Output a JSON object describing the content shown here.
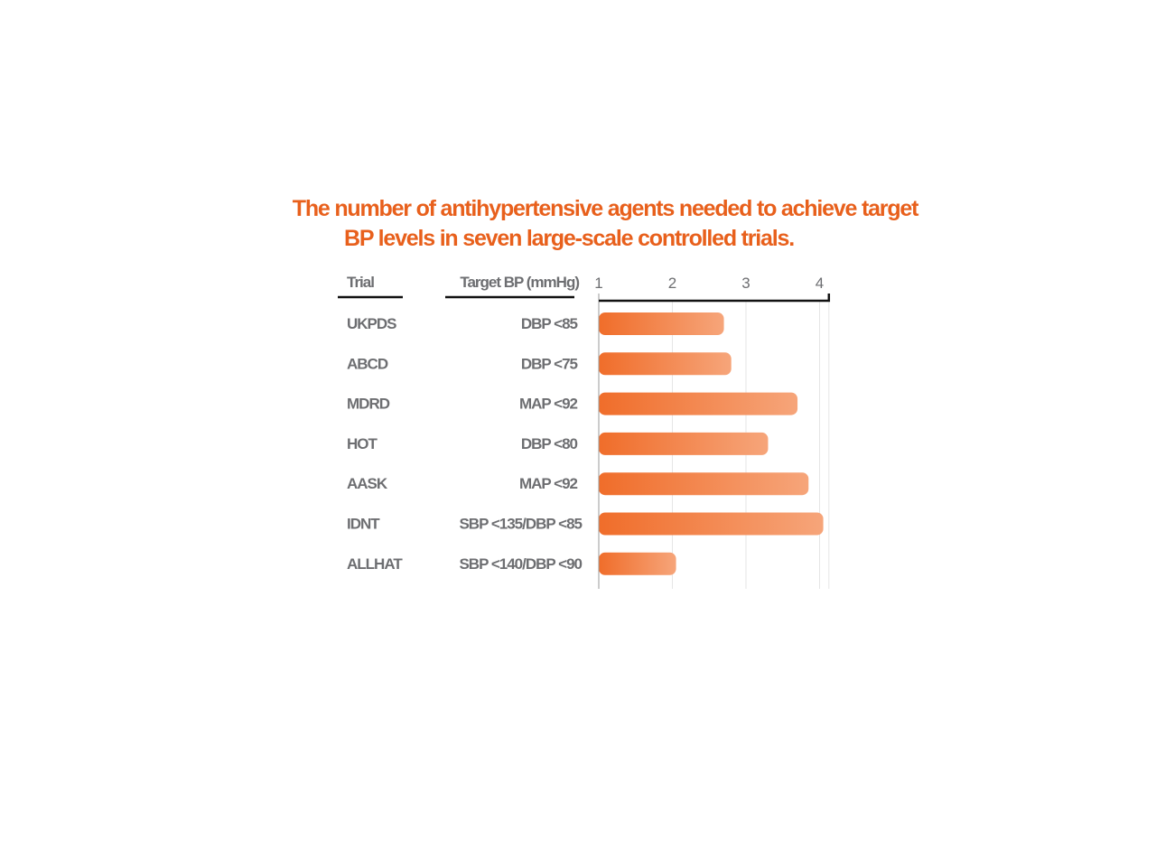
{
  "chart_data": {
    "type": "bar",
    "orientation": "horizontal",
    "title_lines": [
      "The number of antihypertensive agents needed to achieve target",
      "BP levels in seven large-scale controlled trials."
    ],
    "headers": {
      "trial": "Trial",
      "target": "Target BP (mmHg)"
    },
    "categories": [
      "UKPDS",
      "ABCD",
      "MDRD",
      "HOT",
      "AASK",
      "IDNT",
      "ALLHAT"
    ],
    "targets": [
      "DBP <85",
      "DBP <75",
      "MAP <92",
      "DBP <80",
      "MAP <92",
      "SBP <135/DBP <85",
      "SBP <140/DBP <90"
    ],
    "values": [
      2.7,
      2.8,
      3.7,
      3.3,
      3.85,
      4.05,
      2.05
    ],
    "xlim": [
      1,
      4.2
    ],
    "xticks": [
      "1",
      "2",
      "3",
      "4"
    ],
    "axis_position": "top",
    "grid": true,
    "colors": {
      "title": "#e8601c",
      "bar_start": "#f06d2a",
      "bar_end": "#f6a57a",
      "text": "#6d6e71",
      "axis": "#111111",
      "grid": "#e6e6e6"
    }
  }
}
